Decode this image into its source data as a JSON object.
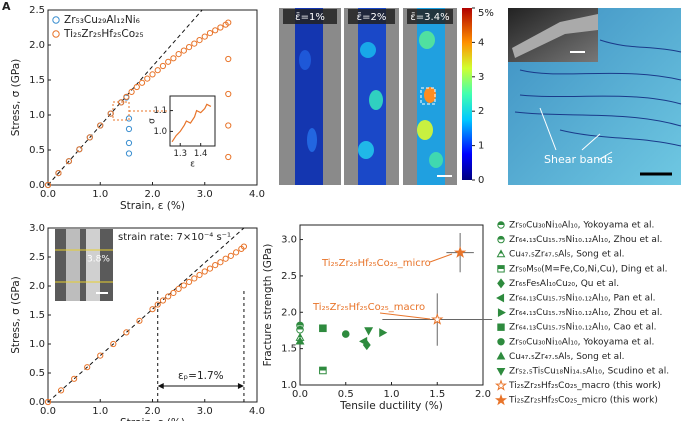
{
  "panel_label": "A",
  "strain_maps": {
    "labels": [
      "ε̄=1%",
      "ε̄=2%",
      "ε̄=3.4%"
    ],
    "colorbar": {
      "lim": [
        0,
        5
      ],
      "ticks": [
        0,
        1,
        2,
        3,
        4,
        {
          "value": 5,
          "label": "5%"
        }
      ]
    }
  },
  "sem_image": {
    "annotation": "Shear bands"
  },
  "chart_data": [
    {
      "type": "scatter",
      "xlabel": "Strain, ε (%)",
      "ylabel": "Stress, σ (GPa)",
      "xlim": [
        0,
        4
      ],
      "ylim": [
        0,
        2.5
      ],
      "xticks": [
        {
          "value": 0,
          "label": "0.0"
        },
        {
          "value": 1,
          "label": "1.0"
        },
        {
          "value": 2,
          "label": "2.0"
        },
        {
          "value": 3,
          "label": "3.0"
        },
        {
          "value": 4,
          "label": "4.0"
        }
      ],
      "yticks": [
        {
          "value": 0,
          "label": "0.0"
        },
        0.5,
        {
          "value": 1,
          "label": "1.0"
        },
        1.5,
        {
          "value": 2,
          "label": "2.0"
        },
        2.5
      ],
      "legend": "upper left",
      "series": [
        {
          "name": "Zr₅₃Cu₂₉Al₁₂Ni₆",
          "color": "#3b8fd0",
          "marker": "circle",
          "fill": "open",
          "x": [
            0,
            0.2,
            0.4,
            0.6,
            0.8,
            1.0,
            1.2,
            1.4,
            1.5,
            1.55,
            1.55,
            1.55,
            1.55
          ],
          "values": [
            0,
            0.17,
            0.34,
            0.51,
            0.68,
            0.85,
            1.02,
            1.18,
            1.25,
            0.95,
            0.8,
            0.6,
            0.45
          ]
        },
        {
          "name": "Ti₂₅Zr₂₅Hf₂₅Co₂₅",
          "color": "#e8742a",
          "marker": "circle",
          "fill": "open",
          "x": [
            0,
            0.2,
            0.4,
            0.6,
            0.8,
            1.0,
            1.2,
            1.4,
            1.5,
            1.6,
            1.7,
            1.8,
            1.9,
            2.0,
            2.1,
            2.2,
            2.3,
            2.4,
            2.5,
            2.6,
            2.7,
            2.8,
            2.9,
            3.0,
            3.1,
            3.2,
            3.3,
            3.4,
            3.45,
            3.45,
            3.45,
            3.45,
            3.45
          ],
          "values": [
            0,
            0.17,
            0.34,
            0.51,
            0.68,
            0.85,
            1.02,
            1.18,
            1.26,
            1.33,
            1.4,
            1.46,
            1.52,
            1.58,
            1.64,
            1.7,
            1.76,
            1.81,
            1.87,
            1.92,
            1.97,
            2.02,
            2.07,
            2.12,
            2.17,
            2.21,
            2.25,
            2.29,
            2.32,
            1.8,
            1.3,
            0.85,
            0.4
          ]
        }
      ],
      "fit_line": {
        "x": [
          0,
          2.95
        ],
        "values": [
          0,
          2.5
        ]
      },
      "inset": {
        "xlabel": "ε",
        "ylabel": "σ",
        "xlim": [
          1.25,
          1.47
        ],
        "ylim": [
          0.93,
          1.17
        ],
        "xticks": [
          1.3,
          1.4
        ],
        "yticks": [
          {
            "value": 1,
            "label": "1.0"
          },
          1.1
        ],
        "series": [
          {
            "color": "#e8742a",
            "x": [
              1.26,
              1.28,
              1.3,
              1.32,
              1.33,
              1.35,
              1.37,
              1.38,
              1.4,
              1.42,
              1.43,
              1.45
            ],
            "values": [
              0.95,
              0.98,
              1.0,
              1.03,
              1.05,
              1.04,
              1.07,
              1.1,
              1.09,
              1.11,
              1.13,
              1.12
            ]
          }
        ]
      }
    },
    {
      "type": "scatter",
      "xlabel": "Strain, ε (%)",
      "ylabel": "Stress, σ (GPa)",
      "xlim": [
        0,
        4
      ],
      "ylim": [
        0,
        3
      ],
      "xticks": [
        {
          "value": 0,
          "label": "0.0"
        },
        {
          "value": 1,
          "label": "1.0"
        },
        {
          "value": 2,
          "label": "2.0"
        },
        {
          "value": 3,
          "label": "3.0"
        },
        {
          "value": 4,
          "label": "4.0"
        }
      ],
      "yticks": [
        {
          "value": 0,
          "label": "0.0"
        },
        0.5,
        {
          "value": 1,
          "label": "1.0"
        },
        1.5,
        {
          "value": 2,
          "label": "2.0"
        },
        2.5,
        {
          "value": 3,
          "label": "3.0"
        }
      ],
      "series": [
        {
          "color": "#e8742a",
          "marker": "circle",
          "fill": "open",
          "x": [
            0,
            0.25,
            0.5,
            0.75,
            1.0,
            1.25,
            1.5,
            1.75,
            2.0,
            2.1,
            2.2,
            2.3,
            2.4,
            2.5,
            2.6,
            2.7,
            2.8,
            2.9,
            3.0,
            3.1,
            3.2,
            3.3,
            3.4,
            3.5,
            3.6,
            3.7,
            3.75
          ],
          "values": [
            0,
            0.2,
            0.4,
            0.6,
            0.8,
            1.0,
            1.2,
            1.4,
            1.6,
            1.68,
            1.75,
            1.82,
            1.88,
            1.95,
            2.01,
            2.07,
            2.13,
            2.19,
            2.25,
            2.3,
            2.36,
            2.41,
            2.47,
            2.52,
            2.58,
            2.64,
            2.68
          ]
        }
      ],
      "fit_line": {
        "x": [
          0,
          3.75
        ],
        "values": [
          0,
          3.0
        ]
      },
      "plastic_strain_bounds": [
        2.1,
        3.75
      ],
      "annotations": {
        "strain_rate": "strain rate: 7×10⁻⁴ s⁻¹",
        "plastic_strain": "εₚ=1.7%",
        "inset_strain": "3.8%"
      }
    },
    {
      "type": "scatter",
      "xlabel": "Tensile ductility (%)",
      "ylabel": "Fracture strength (GPa)",
      "xlim": [
        0,
        2
      ],
      "ylim": [
        1,
        3.2
      ],
      "xticks": [
        {
          "value": 0,
          "label": "0.0"
        },
        0.5,
        {
          "value": 1,
          "label": "1.0"
        },
        1.5,
        {
          "value": 2,
          "label": "2.0"
        }
      ],
      "yticks": [
        {
          "value": 1,
          "label": "1.0"
        },
        1.5,
        {
          "value": 2,
          "label": "2.0"
        },
        2.5,
        {
          "value": 3,
          "label": "3.0"
        }
      ],
      "legend": "right",
      "series": [
        {
          "name": "Zr₅₀Cu₃₀Ni₁₀Al₁₀, Yokoyama et al.",
          "color": "#2e8b3e",
          "marker": "circle",
          "fill": "half",
          "x": [
            0
          ],
          "values": [
            1.82
          ]
        },
        {
          "name": "Zr₆₄.₁₃Cu₁₅.₇₅Ni₁₀.₁₂Al₁₀, Zhou et al.",
          "color": "#2e8b3e",
          "marker": "circle",
          "fill": "half",
          "x": [
            0
          ],
          "values": [
            1.76
          ]
        },
        {
          "name": "Cu₄₇.₅Zr₄₇.₅Al₅, Song et al.",
          "color": "#2e8b3e",
          "marker": "triangle-up",
          "fill": "half",
          "x": [
            0
          ],
          "values": [
            1.65
          ]
        },
        {
          "name": "Zr₅₀M₅₀(M=Fe,Co,Ni,Cu), Ding et al.",
          "color": "#2e8b3e",
          "marker": "square",
          "fill": "half",
          "x": [
            0.25
          ],
          "values": [
            1.2
          ]
        },
        {
          "name": "Zr₆₅Fe₅Al₁₀Cu₂₀, Qu et al.",
          "color": "#2e8b3e",
          "marker": "diamond",
          "fill": "full",
          "x": [
            0.73
          ],
          "values": [
            1.55
          ]
        },
        {
          "name": "Zr₆₄.₁₃Cu₁₅.₇₅Ni₁₀.₁₂Al₁₀, Pan et al.",
          "color": "#2e8b3e",
          "marker": "triangle-left",
          "fill": "full",
          "x": [
            0.7
          ],
          "values": [
            1.6
          ]
        },
        {
          "name": "Zr₆₄.₁₃Cu₁₅.₇₅Ni₁₀.₁₂Al₁₀, Zhou et al.",
          "color": "#2e8b3e",
          "marker": "triangle-right",
          "fill": "full",
          "x": [
            0.9
          ],
          "values": [
            1.72
          ]
        },
        {
          "name": "Zr₆₄.₁₃Cu₁₅.₇₅Ni₁₀.₁₂Al₁₀, Cao et al.",
          "color": "#2e8b3e",
          "marker": "square",
          "fill": "full",
          "x": [
            0.25
          ],
          "values": [
            1.78
          ]
        },
        {
          "name": "Zr₅₀Cu₃₀Ni₁₀Al₁₀, Yokoyama et al.",
          "color": "#2e8b3e",
          "marker": "circle",
          "fill": "full",
          "x": [
            0.5
          ],
          "values": [
            1.7
          ]
        },
        {
          "name": "Cu₄₇.₅Zr₄₇.₅Al₅, Song et al.",
          "color": "#2e8b3e",
          "marker": "triangle-up",
          "fill": "full",
          "x": [
            0
          ],
          "values": [
            1.6
          ]
        },
        {
          "name": "Zr₅₂.₅Ti₅Cu₁₈Ni₁₄.₅Al₁₀, Scudino et al.",
          "color": "#2e8b3e",
          "marker": "triangle-down",
          "fill": "full",
          "x": [
            0.75
          ],
          "values": [
            1.75
          ]
        },
        {
          "name": "Ti₂₅Zr₂₅Hf₂₅Co₂₅_macro (this work)",
          "color": "#e8742a",
          "marker": "star",
          "fill": "open",
          "x": [
            1.5
          ],
          "values": [
            1.9
          ],
          "xerr": [
            0.6
          ],
          "yerr": [
            0.36
          ]
        },
        {
          "name": "Ti₂₅Zr₂₅Hf₂₅Co₂₅_micro (this work)",
          "color": "#e8742a",
          "marker": "star",
          "fill": "full",
          "x": [
            1.75
          ],
          "values": [
            2.82
          ],
          "xerr": [
            0.15
          ],
          "yerr": [
            0.27
          ]
        }
      ],
      "annotations": [
        "Ti₂₅Zr₂₅Hf₂₅Co₂₅_micro",
        "Ti₂₅Zr₂₅Hf₂₅Co₂₅_macro"
      ]
    }
  ]
}
